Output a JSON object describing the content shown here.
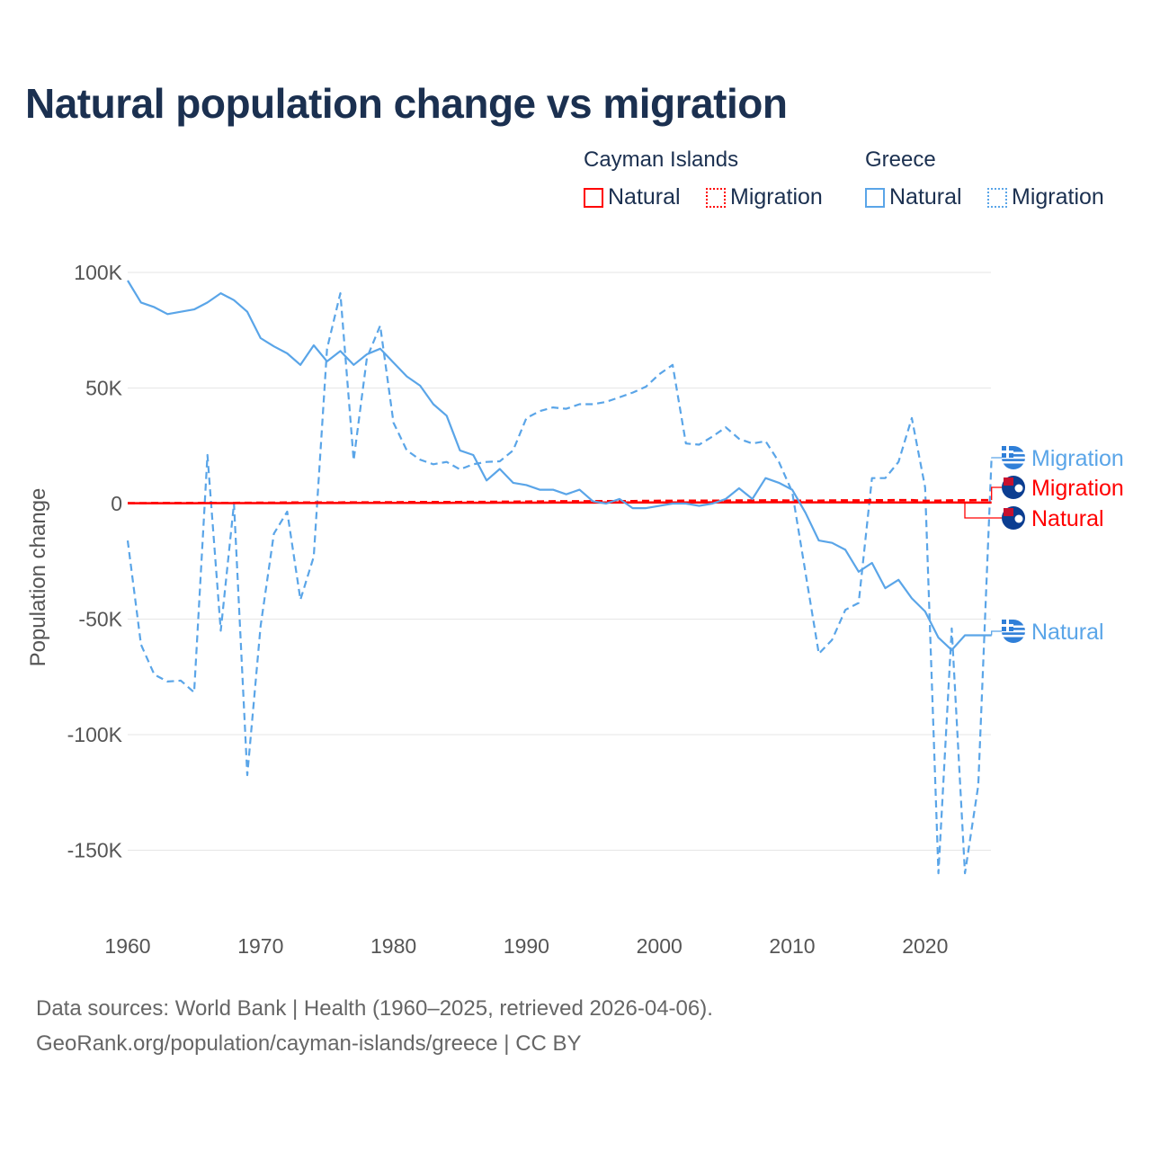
{
  "title": "Natural population change vs migration",
  "legend": {
    "groups": [
      {
        "name": "Cayman Islands",
        "color": "#ff0000",
        "items": [
          "Natural",
          "Migration"
        ]
      },
      {
        "name": "Greece",
        "color": "#5aa5e8",
        "items": [
          "Natural",
          "Migration"
        ]
      }
    ]
  },
  "footer": {
    "line1": "Data sources: World Bank | Health (1960–2025, retrieved 2026-04-06).",
    "line2": "GeoRank.org/population/cayman-islands/greece | CC BY"
  },
  "chart_data": {
    "type": "line",
    "title": "Natural population change vs migration",
    "xlabel": "",
    "ylabel": "Population change",
    "xlim": [
      1960,
      2025
    ],
    "ylim": [
      -160000,
      100000
    ],
    "x_ticks": [
      1960,
      1970,
      1980,
      1990,
      2000,
      2010,
      2020
    ],
    "x_tick_labels": [
      "1960",
      "1970",
      "1980",
      "1990",
      "2000",
      "2010",
      "2020"
    ],
    "y_ticks": [
      100000,
      50000,
      0,
      -50000,
      -100000,
      -150000
    ],
    "y_tick_labels": [
      "100K",
      "50K",
      "0",
      "-50K",
      "-100K",
      "-150K"
    ],
    "grid": true,
    "x_start": 1960,
    "series": [
      {
        "name": "Greece Migration",
        "country": "Greece",
        "kind": "Migration",
        "label": "Migration",
        "color": "#5aa5e8",
        "dash": true,
        "values": [
          -16000,
          -61000,
          -74000,
          -77000,
          -76600,
          -81700,
          21000,
          -55000,
          0,
          -117500,
          -53000,
          -13000,
          -3500,
          -41600,
          -23000,
          67000,
          91000,
          18700,
          63000,
          77000,
          35000,
          23000,
          19000,
          17000,
          18000,
          14800,
          17000,
          18000,
          18300,
          23000,
          37000,
          40000,
          41600,
          41000,
          43000,
          43000,
          44000,
          46000,
          48000,
          50600,
          56000,
          60000,
          26000,
          25500,
          29000,
          33000,
          28000,
          26000,
          27000,
          18000,
          5000,
          -30000,
          -65000,
          -59000,
          -46000,
          -43000,
          11000,
          11000,
          18000,
          37000,
          7000,
          -160000,
          -54000,
          -160000,
          -122000,
          20000
        ]
      },
      {
        "name": "Cayman Islands Migration",
        "country": "Cayman Islands",
        "kind": "Migration",
        "label": "Migration",
        "color": "#ff0000",
        "dash": true,
        "values": [
          200,
          200,
          250,
          250,
          250,
          300,
          300,
          300,
          300,
          350,
          400,
          400,
          450,
          450,
          500,
          500,
          500,
          550,
          550,
          600,
          600,
          650,
          650,
          700,
          700,
          700,
          750,
          750,
          800,
          800,
          900,
          950,
          1000,
          1000,
          1000,
          1050,
          1050,
          1100,
          1100,
          1150,
          1200,
          1200,
          1250,
          1250,
          1300,
          1300,
          1350,
          1350,
          1400,
          1400,
          1300,
          1300,
          1300,
          1350,
          1400,
          1400,
          1450,
          1450,
          1500,
          1500,
          1200,
          1300,
          1400,
          1450,
          1500,
          1500
        ]
      },
      {
        "name": "Cayman Islands Natural",
        "country": "Cayman Islands",
        "kind": "Natural",
        "label": "Natural",
        "color": "#ff0000",
        "dash": false,
        "values": [
          150,
          150,
          160,
          160,
          170,
          170,
          180,
          180,
          190,
          190,
          200,
          200,
          210,
          220,
          230,
          240,
          250,
          260,
          270,
          280,
          290,
          300,
          310,
          320,
          330,
          340,
          350,
          360,
          370,
          380,
          390,
          400,
          410,
          420,
          430,
          440,
          450,
          460,
          470,
          480,
          490,
          500,
          510,
          520,
          530,
          540,
          550,
          560,
          570,
          580,
          570,
          560,
          550,
          540,
          530,
          520,
          510,
          500,
          490,
          480,
          470,
          460,
          450,
          440,
          430,
          420
        ]
      },
      {
        "name": "Greece Natural",
        "country": "Greece",
        "kind": "Natural",
        "label": "Natural",
        "color": "#5aa5e8",
        "dash": false,
        "values": [
          96500,
          87000,
          85000,
          82000,
          83000,
          84000,
          87000,
          91000,
          88000,
          83000,
          71600,
          68000,
          65000,
          60000,
          68500,
          61500,
          66000,
          60000,
          64600,
          67000,
          61000,
          55000,
          51000,
          43000,
          38000,
          23000,
          21000,
          10000,
          15000,
          9000,
          8000,
          6000,
          6000,
          4000,
          6000,
          1000,
          0,
          2000,
          -2000,
          -2000,
          -1000,
          0,
          0,
          -1000,
          0,
          2000,
          6600,
          2000,
          11000,
          9000,
          6000,
          -4000,
          -16000,
          -17000,
          -20000,
          -29500,
          -25700,
          -36600,
          -33000,
          -41000,
          -46700,
          -58000,
          -63400,
          -57000,
          -57000,
          -57000
        ]
      }
    ]
  }
}
